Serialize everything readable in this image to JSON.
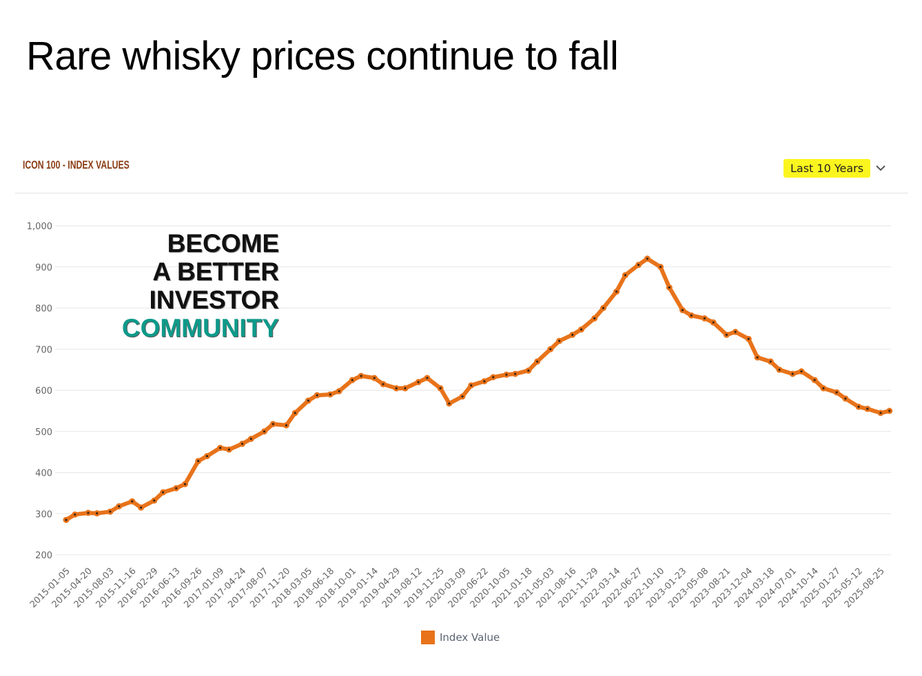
{
  "headline": "Rare whisky prices continue to fall",
  "panel": {
    "title": "ICON 100 - INDEX VALUES",
    "range_label": "Last 10 Years",
    "range_icon": "chevron-down-icon"
  },
  "promo": {
    "line1": "BECOME",
    "line2": "A BETTER",
    "line3": "INVESTOR",
    "line4": "COMMUNITY"
  },
  "colors": {
    "series": "#e8731a",
    "marker": "#3b2412",
    "grid": "#e6e6e6",
    "axis_text": "#666666",
    "highlight": "#fbf51f",
    "title": "#8b3d14",
    "community": "#0e9a8a"
  },
  "chart_data": {
    "type": "line",
    "xlabel": "",
    "ylabel": "",
    "ylim": [
      200,
      1000
    ],
    "yticks": [
      200,
      300,
      400,
      500,
      600,
      700,
      800,
      900,
      1000
    ],
    "ytick_labels": [
      "200",
      "300",
      "400",
      "500",
      "600",
      "700",
      "800",
      "900",
      "1,000"
    ],
    "grid": true,
    "legend_position": "bottom-center",
    "x_tick_labels": [
      "2015-01-05",
      "2015-04-20",
      "2015-08-03",
      "2015-11-16",
      "2016-02-29",
      "2016-06-13",
      "2016-09-26",
      "2017-01-09",
      "2017-04-24",
      "2017-08-07",
      "2017-11-20",
      "2018-03-05",
      "2018-06-18",
      "2018-10-01",
      "2019-01-14",
      "2019-04-29",
      "2019-08-12",
      "2019-11-25",
      "2020-03-09",
      "2020-06-22",
      "2020-10-05",
      "2021-01-18",
      "2021-05-03",
      "2021-08-16",
      "2021-11-29",
      "2022-03-14",
      "2022-06-27",
      "2022-10-10",
      "2023-01-23",
      "2023-05-08",
      "2023-08-21",
      "2023-12-04",
      "2024-03-18",
      "2024-07-01",
      "2024-10-14",
      "2025-01-27",
      "2025-05-12",
      "2025-08-25"
    ],
    "series": [
      {
        "name": "Index Value",
        "x": [
          "2015-01-05",
          "2015-02-16",
          "2015-04-20",
          "2015-06-01",
          "2015-08-03",
          "2015-09-14",
          "2015-11-16",
          "2015-12-28",
          "2016-02-29",
          "2016-04-11",
          "2016-06-13",
          "2016-07-25",
          "2016-09-26",
          "2016-11-07",
          "2017-01-09",
          "2017-02-20",
          "2017-04-24",
          "2017-06-05",
          "2017-08-07",
          "2017-09-18",
          "2017-11-20",
          "2018-01-01",
          "2018-03-05",
          "2018-04-16",
          "2018-06-18",
          "2018-07-30",
          "2018-10-01",
          "2018-11-12",
          "2019-01-14",
          "2019-02-25",
          "2019-04-29",
          "2019-06-10",
          "2019-08-12",
          "2019-09-23",
          "2019-11-25",
          "2020-01-06",
          "2020-03-09",
          "2020-04-20",
          "2020-06-22",
          "2020-08-03",
          "2020-10-05",
          "2020-11-16",
          "2021-01-18",
          "2021-03-01",
          "2021-05-03",
          "2021-06-14",
          "2021-08-16",
          "2021-09-27",
          "2021-11-29",
          "2022-01-10",
          "2022-03-14",
          "2022-04-25",
          "2022-06-27",
          "2022-08-08",
          "2022-10-10",
          "2022-11-21",
          "2023-01-23",
          "2023-03-06",
          "2023-05-08",
          "2023-06-19",
          "2023-08-21",
          "2023-10-02",
          "2023-12-04",
          "2024-01-15",
          "2024-03-18",
          "2024-04-29",
          "2024-07-01",
          "2024-08-12",
          "2024-10-14",
          "2024-11-25",
          "2025-01-27",
          "2025-03-10",
          "2025-05-12",
          "2025-06-23",
          "2025-08-25",
          "2025-10-06"
        ],
        "values": [
          285,
          298,
          302,
          301,
          305,
          318,
          330,
          315,
          332,
          352,
          362,
          372,
          428,
          440,
          460,
          456,
          470,
          482,
          500,
          518,
          515,
          545,
          575,
          588,
          590,
          598,
          625,
          635,
          630,
          615,
          605,
          605,
          620,
          630,
          605,
          568,
          585,
          612,
          622,
          632,
          638,
          640,
          648,
          670,
          700,
          720,
          735,
          748,
          775,
          800,
          840,
          880,
          905,
          920,
          900,
          850,
          795,
          782,
          775,
          765,
          735,
          742,
          725,
          680,
          670,
          650,
          640,
          646,
          625,
          605,
          595,
          580,
          560,
          555,
          545,
          550
        ]
      }
    ]
  }
}
